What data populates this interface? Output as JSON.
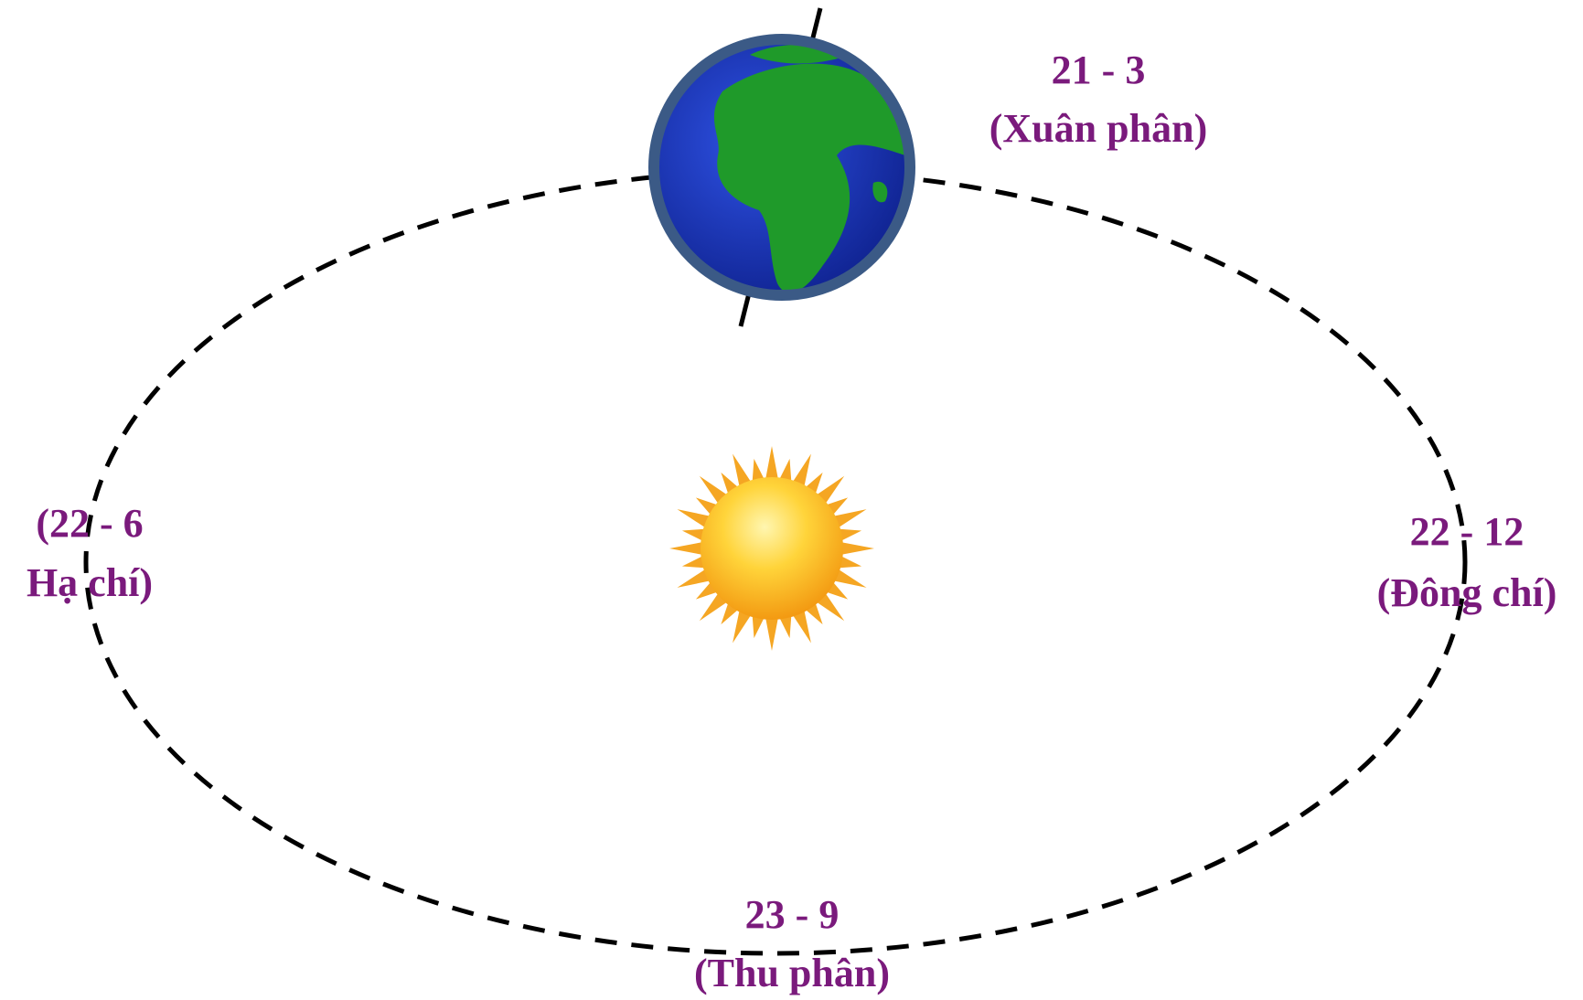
{
  "labels": [
    {
      "date": "21 - 3",
      "name": "(Xuân phân)"
    },
    {
      "date": "(22 - 6",
      "name": "Hạ chí)"
    },
    {
      "date": "22 - 12",
      "name": "(Đông chí)"
    },
    {
      "date": "23 - 9",
      "name": "(Thu phân)"
    }
  ]
}
